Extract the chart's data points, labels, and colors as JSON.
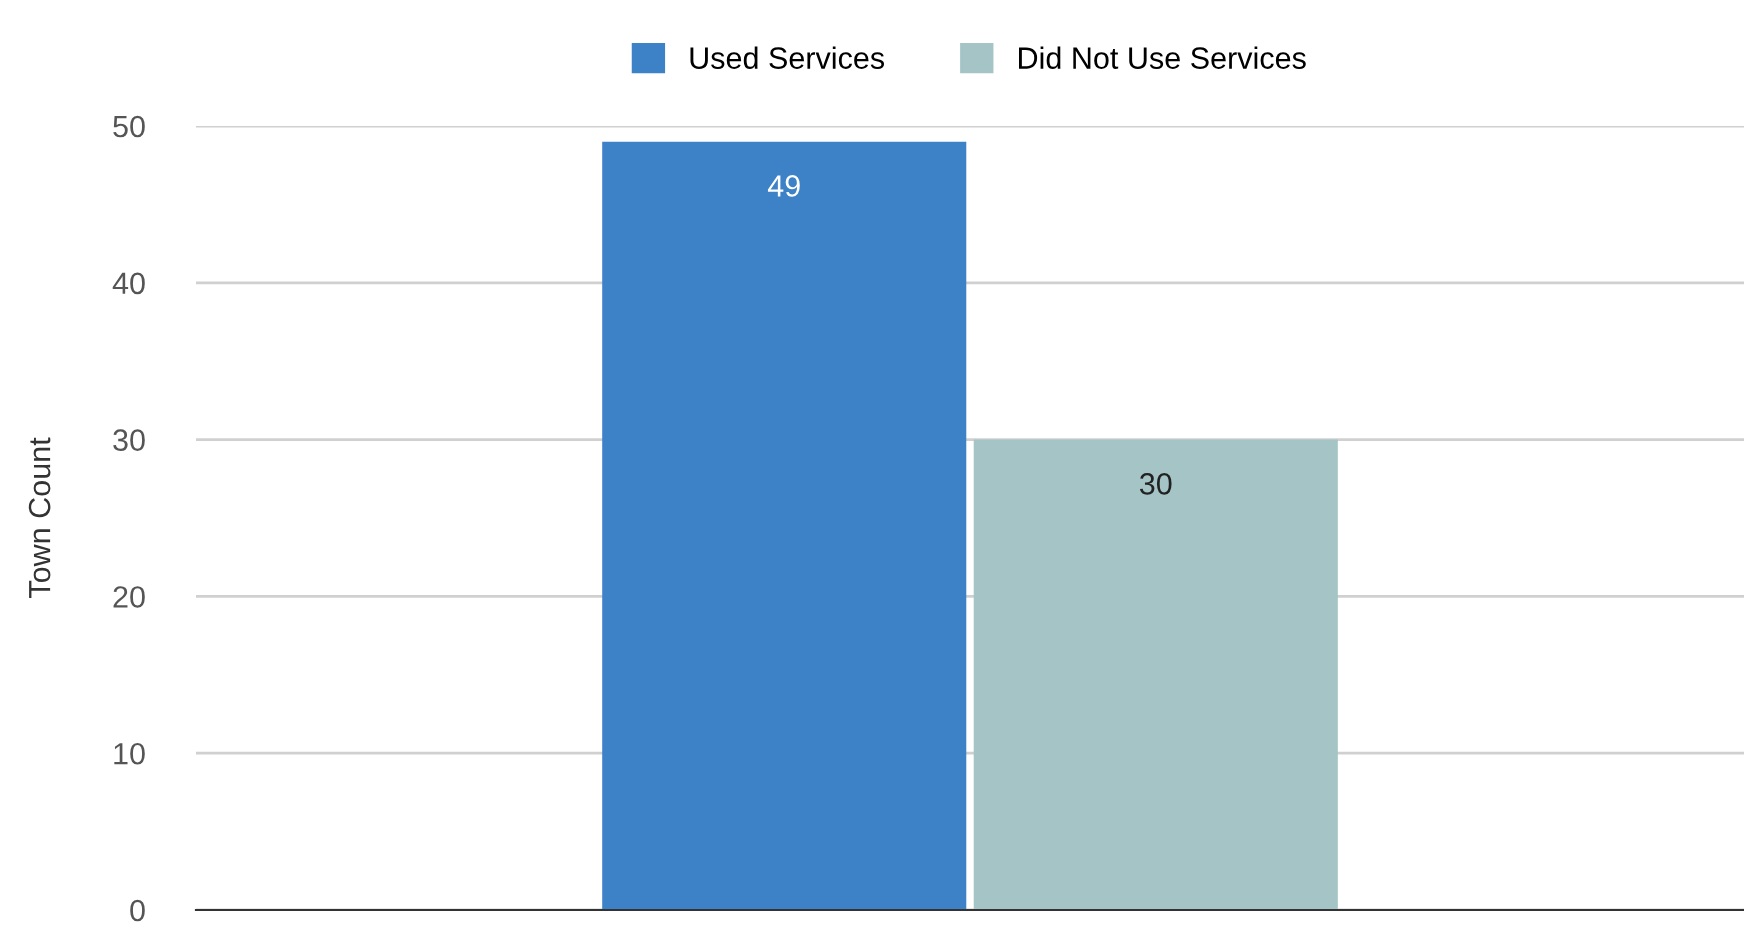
{
  "chart_data": {
    "type": "bar",
    "ylabel": "Town Count",
    "categories": [
      null
    ],
    "series": [
      {
        "name": "Used Services",
        "color": "#3d82c6",
        "values": [
          49
        ]
      },
      {
        "name": "Did Not Use Services",
        "color": "#a4c4c6",
        "values": [
          30
        ]
      }
    ],
    "ylim": [
      0,
      50
    ],
    "yticks": [
      0,
      10,
      20,
      30,
      40,
      50
    ],
    "grid": "y",
    "legend": "top",
    "data_labels": true
  }
}
